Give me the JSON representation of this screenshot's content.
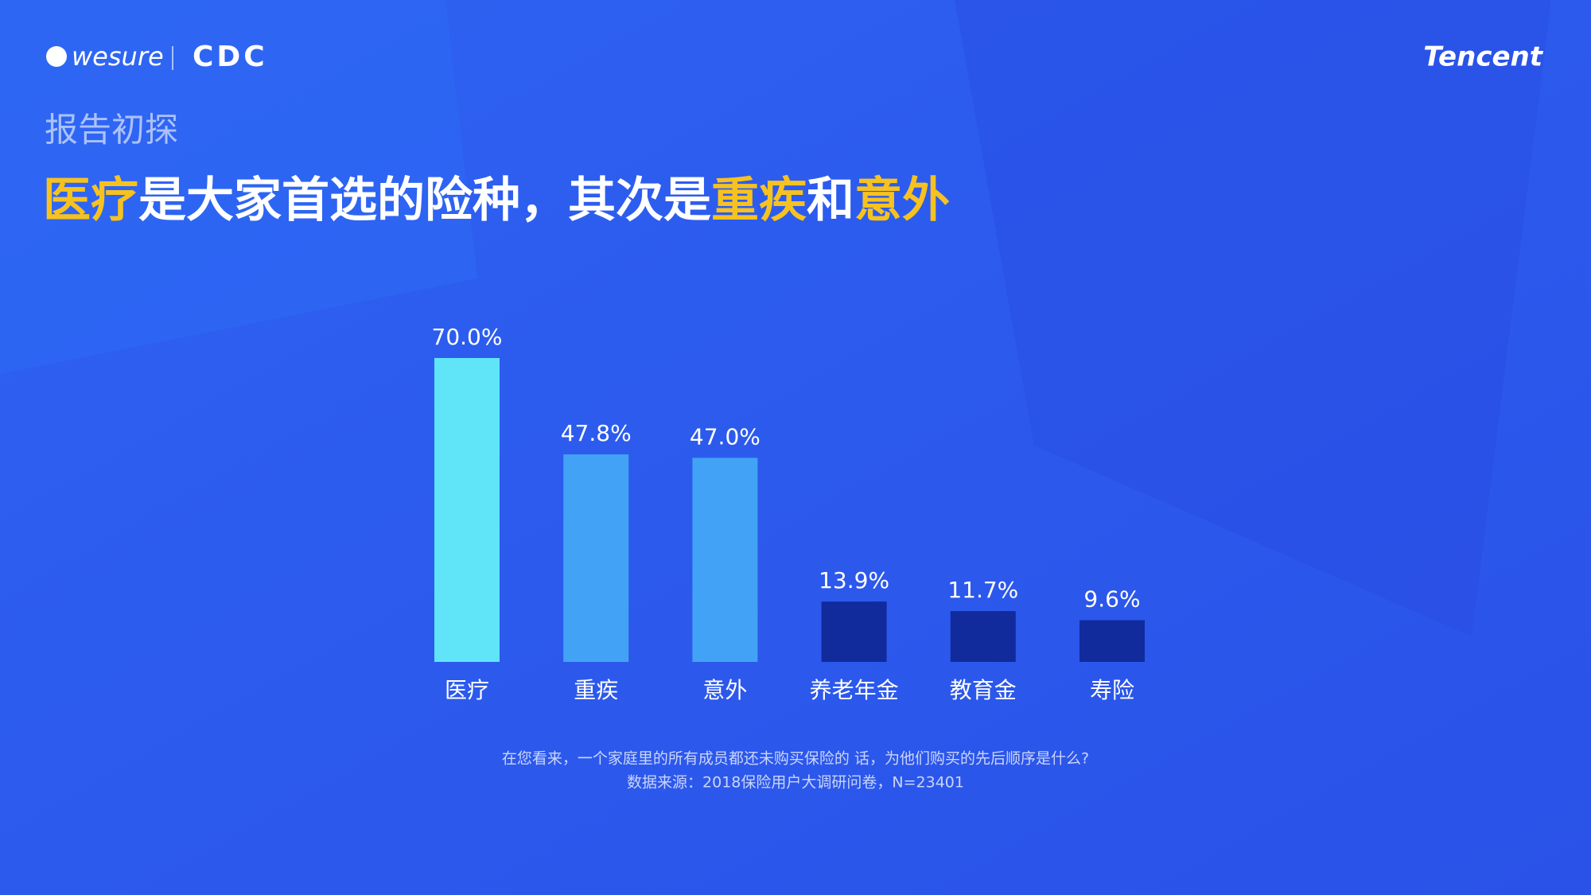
{
  "header": {
    "logos": [
      "wesure",
      "CDC",
      "Tencent"
    ],
    "section": "报告初探"
  },
  "chart_data": {
    "type": "bar",
    "title_parts": [
      {
        "text": "医疗",
        "highlight": true
      },
      {
        "text": "是大家首选的险种，其次是",
        "highlight": false
      },
      {
        "text": "重疾",
        "highlight": true
      },
      {
        "text": "和",
        "highlight": false
      },
      {
        "text": "意外",
        "highlight": true
      }
    ],
    "highlight_color": "#f7c21f",
    "categories": [
      "医疗",
      "重疾",
      "意外",
      "养老年金",
      "教育金",
      "寿险"
    ],
    "values": [
      70.0,
      47.8,
      47.0,
      13.9,
      11.7,
      9.6
    ],
    "value_labels": [
      "70.0%",
      "47.8%",
      "47.0%",
      "13.9%",
      "11.7%",
      "9.6%"
    ],
    "colors": [
      "#5fe4f8",
      "#42a3f6",
      "#42a3f6",
      "#112a9c",
      "#112a9c",
      "#112a9c"
    ],
    "ylim": [
      0,
      70
    ],
    "notes": [
      "在您看来，一个家庭里的所有成员都还未购买保险的 话，为他们购买的先后顺序是什么?",
      "数据来源：2018保险用户大调研问卷，N=23401"
    ]
  }
}
